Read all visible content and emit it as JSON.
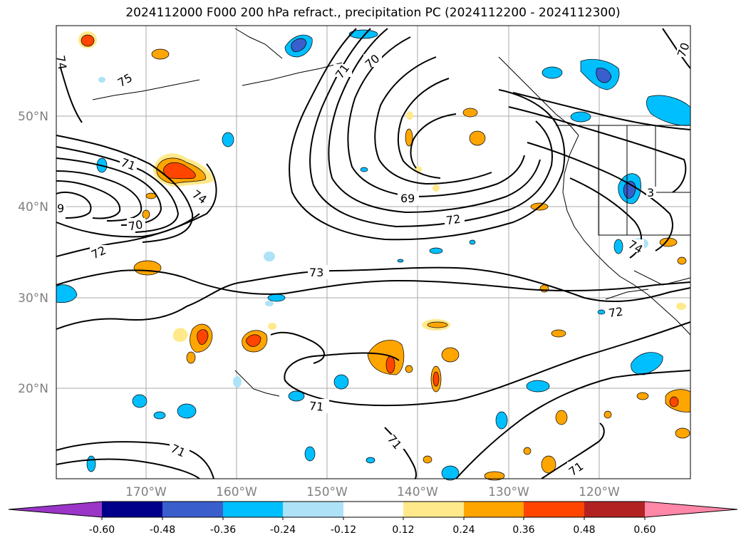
{
  "title": "2024112000 F000 200 hPa refract., precipitation PC (2024112200 - 2024112300)",
  "map": {
    "lat_labels": [
      "50°N",
      "40°N",
      "30°N",
      "20°N"
    ],
    "lon_labels": [
      "170°W",
      "160°W",
      "150°W",
      "140°W",
      "130°W",
      "120°W"
    ],
    "contour_labels": [
      "74",
      "75",
      "71",
      "70",
      "70",
      "74",
      "71",
      "70",
      "69",
      "72",
      "72",
      "73",
      "9",
      "72",
      "71",
      "71",
      "71",
      "71",
      "74",
      "3"
    ]
  },
  "colorbar": {
    "ticks": [
      "-0.60",
      "-0.48",
      "-0.36",
      "-0.24",
      "-0.12",
      "0.12",
      "0.24",
      "0.36",
      "0.48",
      "0.60"
    ],
    "colors": {
      "under": "#9a35c8",
      "c1": "#00008b",
      "c2": "#3a5fcd",
      "c3": "#00bfff",
      "c4": "#aee2f7",
      "c5": "#ffffff",
      "c6": "#ffe98a",
      "c7": "#ffa500",
      "c8": "#ff4500",
      "c9": "#b22222",
      "over": "#ff87a8"
    }
  }
}
